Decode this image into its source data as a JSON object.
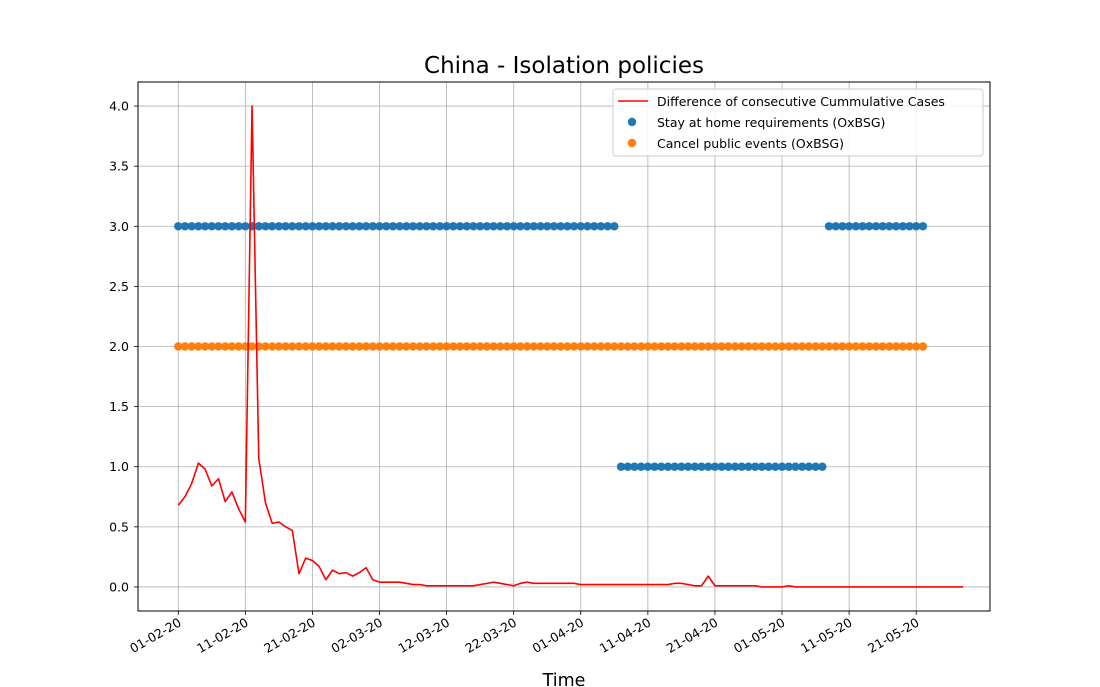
{
  "chart_data": {
    "type": "line",
    "title": "China - Isolation policies",
    "xlabel": "Time",
    "ylabel": "",
    "x_start": "2020-02-01",
    "x_end": "2020-05-28",
    "x_ticks": [
      "01-02-20",
      "11-02-20",
      "21-02-20",
      "02-03-20",
      "12-03-20",
      "22-03-20",
      "01-04-20",
      "11-04-20",
      "21-04-20",
      "01-05-20",
      "11-05-20",
      "21-05-20"
    ],
    "xlim": [
      "2020-01-26",
      "2020-06-01"
    ],
    "ylim": [
      -0.2,
      4.2
    ],
    "y_ticks": [
      "0.0",
      "0.5",
      "1.0",
      "1.5",
      "2.0",
      "2.5",
      "3.0",
      "3.5",
      "4.0"
    ],
    "grid": true,
    "legend_position": "top-right",
    "series": [
      {
        "name": "Difference of consecutive Cummulative Cases",
        "kind": "line",
        "color": "#ff0000",
        "start_date": "2020-02-01",
        "values": [
          0.68,
          0.75,
          0.86,
          1.03,
          0.98,
          0.84,
          0.9,
          0.71,
          0.79,
          0.65,
          0.54,
          4.0,
          1.07,
          0.7,
          0.53,
          0.54,
          0.5,
          0.47,
          0.11,
          0.24,
          0.22,
          0.17,
          0.06,
          0.14,
          0.11,
          0.12,
          0.09,
          0.12,
          0.16,
          0.06,
          0.04,
          0.04,
          0.04,
          0.04,
          0.03,
          0.02,
          0.02,
          0.01,
          0.01,
          0.01,
          0.01,
          0.01,
          0.01,
          0.01,
          0.01,
          0.02,
          0.03,
          0.04,
          0.03,
          0.02,
          0.01,
          0.03,
          0.04,
          0.03,
          0.03,
          0.03,
          0.03,
          0.03,
          0.03,
          0.03,
          0.02,
          0.02,
          0.02,
          0.02,
          0.02,
          0.02,
          0.02,
          0.02,
          0.02,
          0.02,
          0.02,
          0.02,
          0.02,
          0.02,
          0.03,
          0.03,
          0.02,
          0.01,
          0.01,
          0.09,
          0.01,
          0.01,
          0.01,
          0.01,
          0.01,
          0.01,
          0.01,
          0.0,
          0.0,
          0.0,
          0.0,
          0.01,
          0.0,
          0.0,
          0.0,
          0.0,
          0.0,
          0.0,
          0.0,
          0.0,
          0.0,
          0.0,
          0.0,
          0.0,
          0.0,
          0.0,
          0.0,
          0.0,
          0.0,
          0.0,
          0.0,
          0.0,
          0.0,
          0.0,
          0.0,
          0.0,
          0.0,
          0.0
        ]
      },
      {
        "name": "Stay at home requirements (OxBSG)",
        "kind": "scatter",
        "color": "#1f77b4",
        "segments": [
          {
            "start": "2020-02-01",
            "end": "2020-04-06",
            "value": 3
          },
          {
            "start": "2020-04-07",
            "end": "2020-05-07",
            "value": 1
          },
          {
            "start": "2020-05-08",
            "end": "2020-05-22",
            "value": 3
          }
        ]
      },
      {
        "name": "Cancel public events (OxBSG)",
        "kind": "scatter",
        "color": "#ff7f0e",
        "segments": [
          {
            "start": "2020-02-01",
            "end": "2020-05-22",
            "value": 2
          }
        ]
      }
    ]
  }
}
